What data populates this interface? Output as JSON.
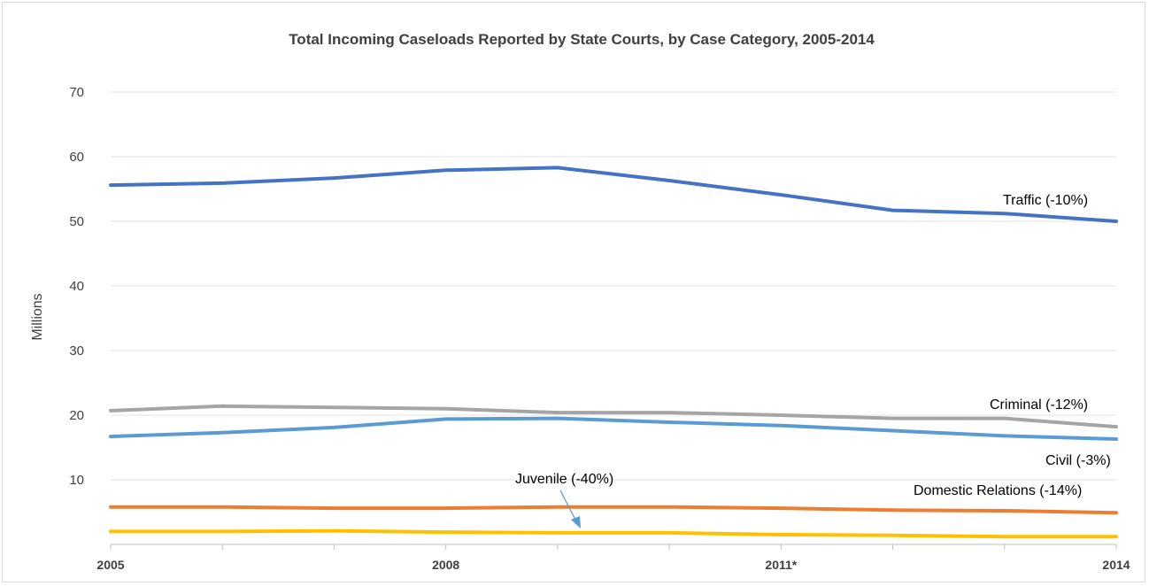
{
  "chart_data": {
    "type": "line",
    "title": "Total Incoming Caseloads Reported by State Courts, by Case Category, 2005-2014",
    "ylabel": "Millions",
    "xlabel": "",
    "ylim": [
      0,
      70
    ],
    "yticks": [
      10,
      20,
      30,
      40,
      50,
      60,
      70
    ],
    "y_tick_labels": [
      "10",
      "20",
      "30",
      "40",
      "50",
      "60",
      "70"
    ],
    "x": [
      2005,
      2006,
      2007,
      2008,
      2009,
      2010,
      2011,
      2012,
      2013,
      2014
    ],
    "x_tick_labels": [
      "2005",
      "2008",
      "2011*",
      "2014"
    ],
    "x_tick_values": [
      2005,
      2008,
      2011,
      2014
    ],
    "grid": true,
    "legend": "none",
    "series": [
      {
        "name": "Traffic",
        "color": "#4472c4",
        "values": [
          55.6,
          55.9,
          56.7,
          57.9,
          58.3,
          56.3,
          54.1,
          51.7,
          51.2,
          50.0
        ]
      },
      {
        "name": "Criminal",
        "color": "#a5a5a5",
        "values": [
          20.7,
          21.4,
          21.2,
          21.0,
          20.4,
          20.4,
          20.0,
          19.5,
          19.5,
          18.2
        ]
      },
      {
        "name": "Civil",
        "color": "#5b9bd5",
        "values": [
          16.7,
          17.3,
          18.1,
          19.4,
          19.5,
          18.9,
          18.4,
          17.6,
          16.8,
          16.3
        ]
      },
      {
        "name": "Domestic Relations",
        "color": "#ed7d31",
        "values": [
          5.8,
          5.8,
          5.6,
          5.6,
          5.8,
          5.8,
          5.6,
          5.3,
          5.2,
          4.9
        ]
      },
      {
        "name": "Juvenile",
        "color": "#ffc000",
        "values": [
          2.0,
          2.0,
          2.1,
          1.9,
          1.8,
          1.8,
          1.5,
          1.4,
          1.2,
          1.2
        ]
      }
    ],
    "annotations": [
      {
        "series": "Traffic",
        "label": "Traffic  (-10%)"
      },
      {
        "series": "Criminal",
        "label": "Criminal  (-12%)"
      },
      {
        "series": "Civil",
        "label": "Civil  (-3%)"
      },
      {
        "series": "Domestic Relations",
        "label": "Domestic Relations (-14%)"
      },
      {
        "series": "Juvenile",
        "label": "Juvenile  (-40%)"
      }
    ],
    "arrow_color": "#5b9bd5"
  }
}
